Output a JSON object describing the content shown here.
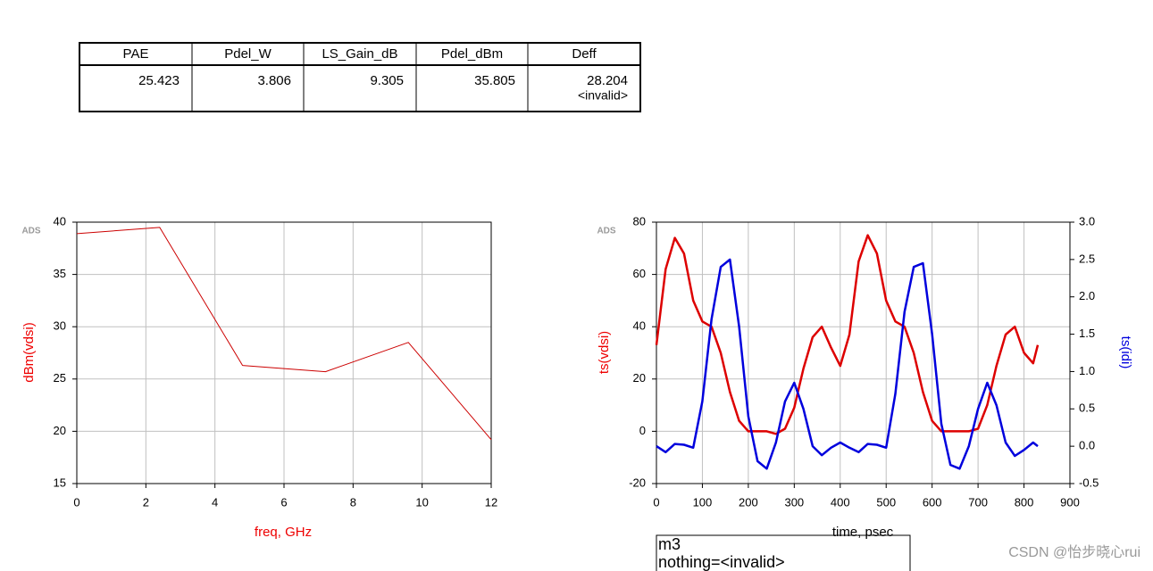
{
  "table": {
    "columns": [
      "PAE",
      "Pdel_W",
      "LS_Gain_dB",
      "Pdel_dBm",
      "Deff"
    ],
    "rows": [
      [
        25.423,
        3.806,
        9.305,
        35.805,
        [
          28.204,
          "<invalid>"
        ]
      ]
    ]
  },
  "logos": [
    "ADS",
    "ADS"
  ],
  "marker": {
    "name": "m3",
    "text": "nothing=<invalid>"
  },
  "watermark": "CSDN @怡步晓心rui",
  "chart_data": [
    {
      "type": "line",
      "xlabel": "freq, GHz",
      "ylabel": "dBm(vdsi)",
      "color": "#cc0000",
      "x": [
        0,
        2.4,
        4.8,
        7.2,
        9.6,
        12
      ],
      "values": [
        38.9,
        39.5,
        26.3,
        25.7,
        28.5,
        19.2
      ],
      "xlim": [
        0,
        12
      ],
      "xticks": [
        0,
        2,
        4,
        6,
        8,
        10,
        12
      ],
      "ylim": [
        15,
        40
      ],
      "yticks": [
        15,
        20,
        25,
        30,
        35,
        40
      ],
      "grid": true
    },
    {
      "type": "line",
      "xlabel": "time, psec",
      "ylabel": "ts(vdsi)",
      "y2label": "ts(idi)",
      "x": [
        0,
        20,
        40,
        60,
        80,
        100,
        120,
        140,
        160,
        180,
        200,
        220,
        240,
        260,
        280,
        300,
        320,
        340,
        360,
        380,
        400,
        420,
        440,
        460,
        480,
        500,
        520,
        540,
        560,
        580,
        600,
        620,
        640,
        660,
        680,
        700,
        720,
        740,
        760,
        780,
        800,
        820,
        830
      ],
      "series": [
        {
          "color": "#dd0000",
          "values": [
            33,
            62,
            74,
            68,
            50,
            42,
            40,
            30,
            15,
            4,
            0,
            0,
            0,
            -1,
            1,
            9,
            24,
            36,
            40,
            32,
            25,
            37,
            65,
            75,
            68,
            50,
            42,
            40,
            30,
            15,
            4,
            0,
            0,
            0,
            0,
            1,
            10,
            25,
            37,
            40,
            30,
            26,
            33
          ]
        },
        {
          "color": "#0000dd",
          "axis": "y2",
          "values": [
            0,
            -0.08,
            0.03,
            0.02,
            -0.02,
            0.6,
            1.7,
            2.4,
            2.5,
            1.6,
            0.4,
            -0.2,
            -0.3,
            0.05,
            0.6,
            0.85,
            0.5,
            0,
            -0.12,
            -0.02,
            0.05,
            -0.02,
            -0.08,
            0.03,
            0.02,
            -0.02,
            0.7,
            1.8,
            2.4,
            2.45,
            1.5,
            0.3,
            -0.25,
            -0.3,
            0,
            0.5,
            0.85,
            0.55,
            0.05,
            -0.13,
            -0.05,
            0.05,
            0
          ]
        }
      ],
      "xlim": [
        0,
        900
      ],
      "xticks": [
        0,
        100,
        200,
        300,
        400,
        500,
        600,
        700,
        800,
        900
      ],
      "ylim": [
        -20,
        80
      ],
      "yticks": [
        -20,
        0,
        20,
        40,
        60,
        80
      ],
      "y2lim": [
        -0.5,
        3.0
      ],
      "y2ticks": [
        -0.5,
        {
          "value": 0,
          "label": "0.0"
        },
        0.5,
        {
          "value": 1,
          "label": "1.0"
        },
        1.5,
        {
          "value": 2,
          "label": "2.0"
        },
        2.5,
        {
          "value": 3,
          "label": "3.0"
        }
      ],
      "grid": true
    }
  ]
}
